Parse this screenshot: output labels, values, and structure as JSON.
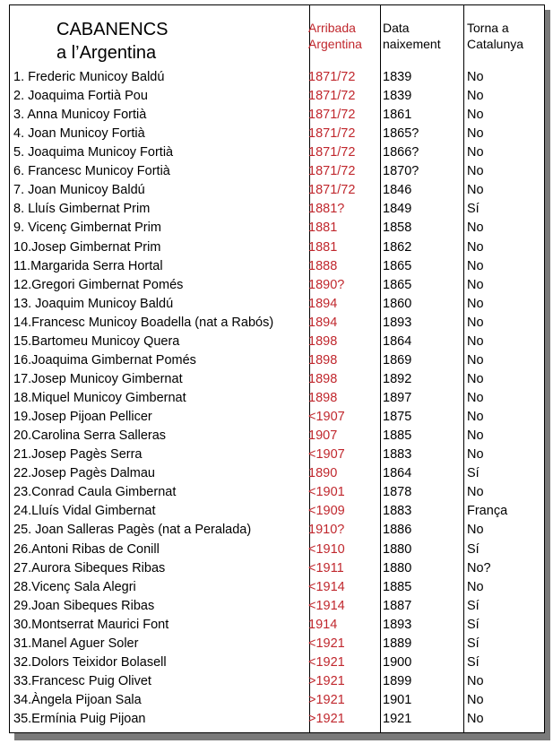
{
  "title": {
    "line1": "CABANENCS",
    "line2": "a l’Argentina"
  },
  "columns": {
    "arrival": [
      "Arribada",
      "Argentina"
    ],
    "birth": [
      "Data",
      "naixement"
    ],
    "return": [
      "Torna a",
      "Catalunya"
    ]
  },
  "accent_color": "#c0272d",
  "rows": [
    [
      "1.  Frederic Municoy Baldú",
      "1871/72",
      "1839",
      "No"
    ],
    [
      "2.  Joaquima Fortià Pou",
      "1871/72",
      "1839",
      "No"
    ],
    [
      "3.  Anna Municoy Fortià",
      "1871/72",
      "1861",
      "No"
    ],
    [
      "4.  Joan Municoy Fortià",
      "1871/72",
      "1865?",
      "No"
    ],
    [
      "5.  Joaquima Municoy Fortià",
      "1871/72",
      "1866?",
      "No"
    ],
    [
      "6.  Francesc Municoy Fortià",
      "1871/72",
      "1870?",
      "No"
    ],
    [
      "7.  Joan Municoy Baldú",
      "1871/72",
      "1846",
      "No"
    ],
    [
      "8.  Lluís Gimbernat Prim",
      "1881?",
      "1849",
      "Sí"
    ],
    [
      "9.  Vicenç Gimbernat Prim",
      "1881",
      "1858",
      "No"
    ],
    [
      "10.Josep Gimbernat Prim",
      "1881",
      "1862",
      "No"
    ],
    [
      "11.Margarida Serra Hortal",
      "1888",
      "1865",
      "No"
    ],
    [
      "12.Gregori Gimbernat Pomés",
      "1890?",
      "1865",
      "No"
    ],
    [
      "13. Joaquim Municoy Baldú",
      "1894",
      "1860",
      "No"
    ],
    [
      "14.Francesc Municoy Boadella (nat a Rabós)",
      "1894",
      "1893",
      "No"
    ],
    [
      "15.Bartomeu Municoy Quera",
      "1898",
      "1864",
      "No"
    ],
    [
      "16.Joaquima Gimbernat Pomés",
      "1898",
      "1869",
      "No"
    ],
    [
      "17.Josep Municoy Gimbernat",
      "1898",
      "1892",
      "No"
    ],
    [
      "18.Miquel Municoy Gimbernat",
      "1898",
      "1897",
      "No"
    ],
    [
      "19.Josep Pijoan Pellicer",
      "<1907",
      "1875",
      "No"
    ],
    [
      "20.Carolina Serra Salleras",
      "1907",
      "1885",
      "No"
    ],
    [
      "21.Josep Pagès Serra",
      "<1907",
      "1883",
      "No"
    ],
    [
      "22.Josep Pagès Dalmau",
      "1890",
      "1864",
      "Sí"
    ],
    [
      "23.Conrad Caula Gimbernat",
      "<1901",
      "1878",
      "No"
    ],
    [
      "24.Lluís Vidal Gimbernat",
      "<1909",
      "1883",
      "França"
    ],
    [
      "25. Joan Salleras Pagès (nat a Peralada)",
      "1910?",
      "1886",
      "No"
    ],
    [
      "26.Antoni Ribas de Conill",
      "<1910",
      "1880",
      "Sí"
    ],
    [
      "27.Aurora Sibeques Ribas",
      "<1911",
      "1880",
      "No?"
    ],
    [
      "28.Vicenç Sala Alegri",
      "<1914",
      "1885",
      "No"
    ],
    [
      "29.Joan Sibeques Ribas",
      "<1914",
      "1887",
      "Sí"
    ],
    [
      "30.Montserrat Maurici Font",
      "1914",
      "1893",
      "Sí"
    ],
    [
      "31.Manel Aguer Soler",
      "<1921",
      "1889",
      "Sí"
    ],
    [
      "32.Dolors Teixidor Bolasell",
      "<1921",
      "1900",
      "Sí"
    ],
    [
      "33.Francesc Puig Olivet",
      ">1921",
      "1899",
      "No"
    ],
    [
      "34.Àngela Pijoan Sala",
      ">1921",
      "1901",
      "No"
    ],
    [
      "35.Ermínia Puig Pijoan",
      ">1921",
      "1921",
      "No"
    ]
  ]
}
